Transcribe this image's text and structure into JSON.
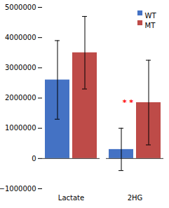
{
  "chart_data": {
    "type": "bar",
    "categories": [
      "Lactate",
      "2HG"
    ],
    "series": [
      {
        "name": "WT",
        "color": "#4472C4",
        "values": [
          2600000,
          300000
        ],
        "errors": [
          1300000,
          700000
        ]
      },
      {
        "name": "MT",
        "color": "#BE4B48",
        "values": [
          3500000,
          1850000
        ],
        "errors": [
          1200000,
          1400000
        ]
      }
    ],
    "ylim": [
      -1000000,
      5000000
    ],
    "yticks": [
      -1000000,
      0,
      1000000,
      2000000,
      3000000,
      4000000,
      5000000
    ],
    "legend": "upper right",
    "annotations": [
      {
        "text": "* *",
        "color": "red",
        "category": "2HG",
        "series": "MT"
      }
    ]
  }
}
